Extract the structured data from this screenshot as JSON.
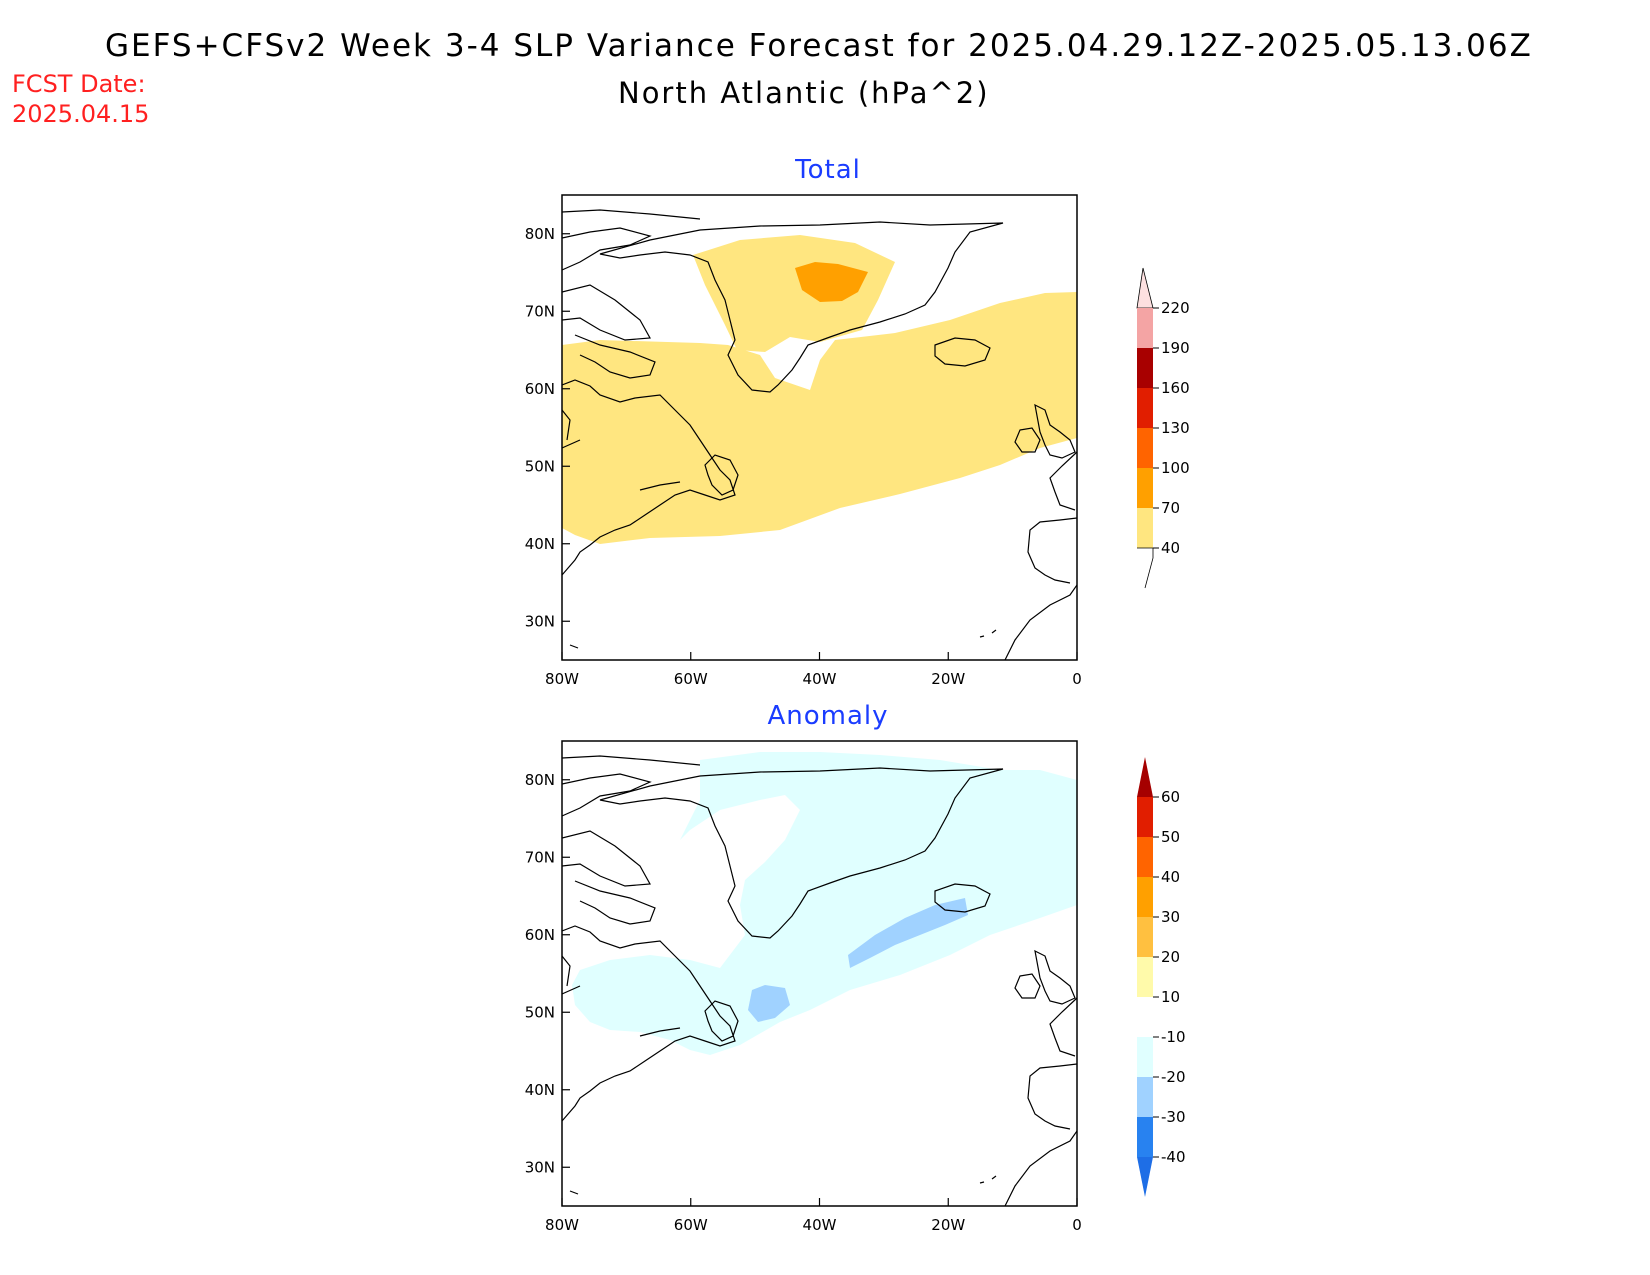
{
  "title": {
    "line1": "GEFS+CFSv2 Week 3-4 SLP Variance Forecast for 2025.04.29.12Z-2025.05.13.06Z",
    "line2": "North Atlantic (hPa^2)"
  },
  "forecast_date": {
    "label": "FCST Date:",
    "value": "2025.04.15"
  },
  "colors": {
    "title_text": "#000000",
    "forecast_date_text": "#ff2020",
    "panel_title_text": "#1a3cff",
    "coastline": "#000000"
  },
  "panels": [
    {
      "title": "Total",
      "x_ticks": [
        "80W",
        "60W",
        "40W",
        "20W",
        "0"
      ],
      "y_ticks": [
        "80N",
        "70N",
        "60N",
        "50N",
        "40N",
        "30N"
      ],
      "colorbar": {
        "labels": [
          "220",
          "190",
          "160",
          "130",
          "100",
          "70",
          "40"
        ],
        "colors": [
          "#fde0e0",
          "#f4a4a4",
          "#a80000",
          "#e11e00",
          "#ff6400",
          "#ffa000",
          "#ffe680"
        ]
      }
    },
    {
      "title": "Anomaly",
      "x_ticks": [
        "80W",
        "60W",
        "40W",
        "20W",
        "0"
      ],
      "y_ticks": [
        "80N",
        "70N",
        "60N",
        "50N",
        "40N",
        "30N"
      ],
      "colorbar": {
        "labels": [
          "60",
          "50",
          "40",
          "30",
          "20",
          "10",
          "-10",
          "-20",
          "-30",
          "-40"
        ],
        "colors": [
          "#a50000",
          "#e11e00",
          "#ff6400",
          "#ffa000",
          "#ffc040",
          "#fffaaa",
          "#ffffff",
          "#e0ffff",
          "#a0d2ff",
          "#2882f0",
          "#1e6ee6"
        ]
      }
    }
  ],
  "chart_data": [
    {
      "type": "heatmap",
      "title": "Total",
      "units": "hPa^2",
      "xlim": [
        -80,
        0
      ],
      "ylim": [
        25,
        85
      ],
      "contour_levels": [
        40,
        70,
        100,
        130,
        160,
        190,
        220
      ],
      "regions": [
        {
          "min_value": 40,
          "max_value": 70,
          "area": "broad band from Labrador/Newfoundland east to the British Isles, ~40N-70N, plus central Greenland"
        },
        {
          "min_value": 70,
          "max_value": 100,
          "area": "central Greenland near 75N 40W"
        }
      ]
    },
    {
      "type": "heatmap",
      "title": "Anomaly",
      "units": "hPa^2",
      "xlim": [
        -80,
        0
      ],
      "ylim": [
        25,
        85
      ],
      "contour_levels": [
        -40,
        -30,
        -20,
        -10,
        10,
        20,
        30,
        40,
        50,
        60
      ],
      "regions": [
        {
          "min_value": -20,
          "max_value": -10,
          "area": "Greenland, Labrador Sea, and North Atlantic south of Iceland to Newfoundland"
        },
        {
          "min_value": -30,
          "max_value": -20,
          "area": "small patches near 52N 47W and southwest of Iceland"
        }
      ]
    }
  ]
}
